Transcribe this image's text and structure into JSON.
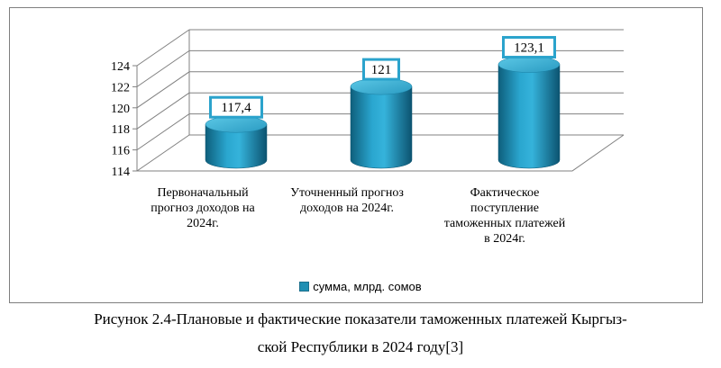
{
  "chart_data": {
    "type": "bar",
    "categories": [
      "Первоначальный прогноз доходов на 2024г.",
      "Уточненный прогноз доходов на 2024г.",
      "Фактическое поступление таможенных платежей в 2024г."
    ],
    "category_lines": [
      [
        "Первоначальный",
        "прогноз доходов на",
        "2024г."
      ],
      [
        "Уточненный прогноз",
        "доходов на 2024г."
      ],
      [
        "Фактическое",
        "поступление",
        "таможенных платежей",
        "в 2024г."
      ]
    ],
    "series": [
      {
        "name": "сумма, млрд. сомов",
        "values": [
          117.4,
          121,
          123.1
        ]
      }
    ],
    "data_labels": [
      "117,4",
      "121",
      "123,1"
    ],
    "yticks": [
      "114",
      "116",
      "118",
      "120",
      "122",
      "124"
    ],
    "ylim": [
      114,
      124
    ],
    "grid": true,
    "legend_position": "bottom",
    "bar_shape": "cylinder-3d",
    "colors": {
      "bar": "#1f8fb3",
      "bar_dark": "#0e5f7c",
      "bar_light": "#4fc0e0",
      "label_border": "#2ba3cc"
    }
  },
  "caption": {
    "line1": "Рисунок 2.4-Плановые и фактические показатели таможенных платежей Кыргыз-",
    "line2": "ской Республики в 2024 году[3]"
  }
}
